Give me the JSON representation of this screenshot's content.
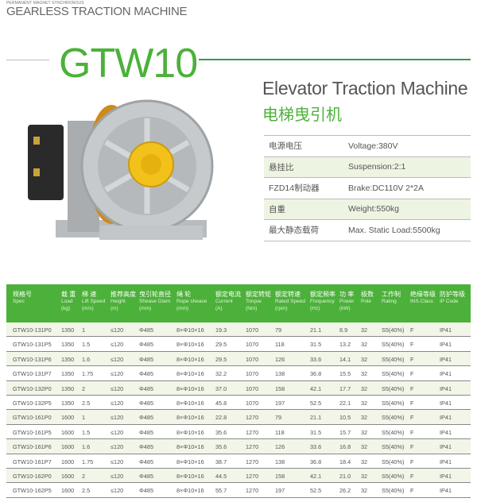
{
  "header": {
    "subtitle": "PERMANENT MAGNET SYNCHRONOUS",
    "title": "GEARLESS TRACTION MACHINE",
    "model": "GTW10"
  },
  "product": {
    "title_en": "Elevator Traction Machine",
    "title_cn": "电梯曳引机"
  },
  "colors": {
    "accent": "#4cb13a",
    "line": "#3a9a50",
    "row_alt": "#eef4e2"
  },
  "specs": [
    {
      "label": "电源电压",
      "value": "Voltage:380V"
    },
    {
      "label": "悬挂比",
      "value": "Suspension:2:1"
    },
    {
      "label": "FZD14制动器",
      "value": "Brake:DC110V 2*2A"
    },
    {
      "label": "自重",
      "value": "Weight:550kg"
    },
    {
      "label": "最大静态载荷",
      "value": "Max. Static Load:5500kg"
    }
  ],
  "table": {
    "columns": [
      {
        "cn": "规格号",
        "en": "Spec",
        "unit": ""
      },
      {
        "cn": "载 重",
        "en": "Load",
        "unit": "(kg)"
      },
      {
        "cn": "梯 速",
        "en": "Lift Speed",
        "unit": "(m/s)"
      },
      {
        "cn": "推荐高度",
        "en": "Height",
        "unit": "(m)"
      },
      {
        "cn": "曳引轮直径",
        "en": "Sheave Diam",
        "unit": "(mm)"
      },
      {
        "cn": "绳 轮",
        "en": "Rope sheave",
        "unit": "(mm)"
      },
      {
        "cn": "额定电流",
        "en": "Current",
        "unit": "(A)"
      },
      {
        "cn": "额定转矩",
        "en": "Torque",
        "unit": "(Nm)"
      },
      {
        "cn": "额定转速",
        "en": "Rated Speed",
        "unit": "(rpm)"
      },
      {
        "cn": "额定频率",
        "en": "Frequency",
        "unit": "(Hz)"
      },
      {
        "cn": "功 率",
        "en": "Power",
        "unit": "(kW)"
      },
      {
        "cn": "极数",
        "en": "Pole",
        "unit": ""
      },
      {
        "cn": "工作制",
        "en": "Rating",
        "unit": ""
      },
      {
        "cn": "绝缘等级",
        "en": "INS.Class",
        "unit": ""
      },
      {
        "cn": "防护等级",
        "en": "IP Code",
        "unit": ""
      }
    ],
    "rows": [
      [
        "GTW10-131P0",
        "1350",
        "1",
        "≤120",
        "Φ485",
        "8×Φ10×16",
        "19.3",
        "1070",
        "79",
        "21.1",
        "8.9",
        "32",
        "S5(40%)",
        "F",
        "IP41"
      ],
      [
        "GTW10-131P5",
        "1350",
        "1.5",
        "≤120",
        "Φ485",
        "8×Φ10×16",
        "29.5",
        "1070",
        "118",
        "31.5",
        "13.2",
        "32",
        "S5(40%)",
        "F",
        "IP41"
      ],
      [
        "GTW10-131P6",
        "1350",
        "1.6",
        "≤120",
        "Φ485",
        "8×Φ10×16",
        "29.5",
        "1070",
        "126",
        "33.6",
        "14.1",
        "32",
        "S5(40%)",
        "F",
        "IP41"
      ],
      [
        "GTW10-131P7",
        "1350",
        "1.75",
        "≤120",
        "Φ485",
        "8×Φ10×16",
        "32.2",
        "1070",
        "138",
        "36.8",
        "15.5",
        "32",
        "S5(40%)",
        "F",
        "IP41"
      ],
      [
        "GTW10-132P0",
        "1350",
        "2",
        "≤120",
        "Φ485",
        "8×Φ10×16",
        "37.0",
        "1070",
        "158",
        "42.1",
        "17.7",
        "32",
        "S5(40%)",
        "F",
        "IP41"
      ],
      [
        "GTW10-132P5",
        "1350",
        "2.5",
        "≤120",
        "Φ485",
        "8×Φ10×16",
        "45.8",
        "1070",
        "197",
        "52.5",
        "22.1",
        "32",
        "S5(40%)",
        "F",
        "IP41"
      ],
      [
        "GTW10-161P0",
        "1600",
        "1",
        "≤120",
        "Φ485",
        "8×Φ10×16",
        "22.8",
        "1270",
        "79",
        "21.1",
        "10.5",
        "32",
        "S5(40%)",
        "F",
        "IP41"
      ],
      [
        "GTW10-161P5",
        "1600",
        "1.5",
        "≤120",
        "Φ485",
        "8×Φ10×16",
        "35.6",
        "1270",
        "118",
        "31.5",
        "15.7",
        "32",
        "S5(40%)",
        "F",
        "IP41"
      ],
      [
        "GTW10-161P6",
        "1600",
        "1.6",
        "≤120",
        "Φ485",
        "8×Φ10×16",
        "35.6",
        "1270",
        "126",
        "33.6",
        "16.8",
        "32",
        "S5(40%)",
        "F",
        "IP41"
      ],
      [
        "GTW10-161P7",
        "1600",
        "1.75",
        "≤120",
        "Φ485",
        "8×Φ10×16",
        "38.7",
        "1270",
        "138",
        "36.8",
        "18.4",
        "32",
        "S5(40%)",
        "F",
        "IP41"
      ],
      [
        "GTW10-162P0",
        "1600",
        "2",
        "≤120",
        "Φ485",
        "8×Φ10×16",
        "44.5",
        "1270",
        "158",
        "42.1",
        "21.0",
        "32",
        "S5(40%)",
        "F",
        "IP41"
      ],
      [
        "GTW10-162P5",
        "1600",
        "2.5",
        "≤120",
        "Φ485",
        "8×Φ10×16",
        "55.7",
        "1270",
        "197",
        "52.5",
        "26.2",
        "32",
        "S5(40%)",
        "F",
        "IP41"
      ]
    ]
  }
}
